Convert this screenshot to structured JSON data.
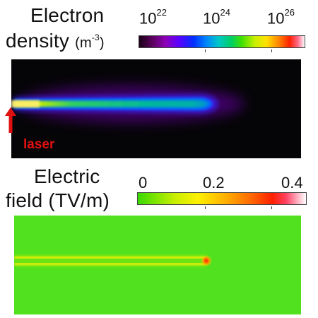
{
  "density": {
    "title_line1": "Electron",
    "title_line2": "density",
    "unit": "(m",
    "unit_exp": "-3",
    "unit_close": ")",
    "ticks": [
      {
        "base": "10",
        "exp": "22"
      },
      {
        "base": "10",
        "exp": "24"
      },
      {
        "base": "10",
        "exp": "26"
      }
    ],
    "colormap": "purple-blue-cyan-green-yellow-orange-red-white",
    "scale": "log"
  },
  "laser": {
    "label": "laser",
    "color": "#e01010",
    "arrow_icon": "up-arrow-icon"
  },
  "field": {
    "title_line1": "Electric",
    "title_line2": "field (TV/m)",
    "ticks": [
      "0",
      "0.2",
      "0.4"
    ],
    "colormap": "green-yellow-orange-red-white",
    "scale": "linear"
  }
}
